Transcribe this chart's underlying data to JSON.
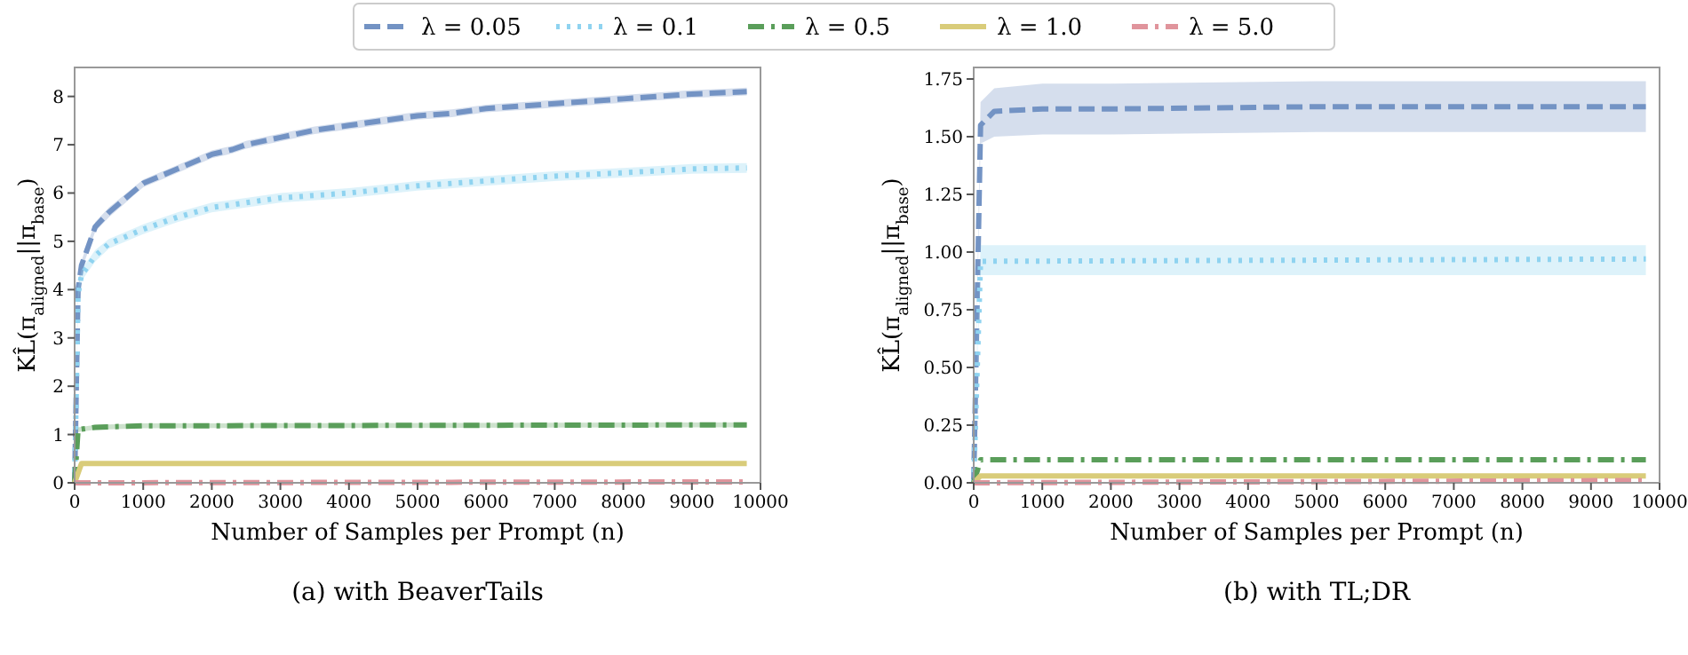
{
  "chart_data": [
    {
      "type": "line",
      "title": "(a) with BeaverTails",
      "xlabel": "Number of Samples per Prompt (n)",
      "ylabel": "KL̂(π$_{aligned}$||π$_{base}$)",
      "xlim": [
        0,
        10000
      ],
      "xticks": [
        0,
        1000,
        2000,
        3000,
        4000,
        5000,
        6000,
        7000,
        8000,
        9000,
        10000
      ],
      "ylim": [
        0,
        8.6
      ],
      "yticks": [
        0,
        1,
        2,
        3,
        4,
        5,
        6,
        7,
        8
      ],
      "legend": "top",
      "series": [
        {
          "name": "λ = 0.05",
          "color": "#7393c4",
          "line_style": "dashed",
          "x": [
            0,
            50,
            100,
            300,
            500,
            1000,
            1500,
            2000,
            2300,
            2500,
            3000,
            3500,
            4000,
            4500,
            5000,
            5500,
            6000,
            6500,
            7000,
            7500,
            8000,
            8500,
            9000,
            9500,
            9800
          ],
          "values": [
            0,
            4.0,
            4.5,
            5.3,
            5.6,
            6.2,
            6.5,
            6.8,
            6.9,
            7.0,
            7.15,
            7.3,
            7.4,
            7.5,
            7.6,
            7.65,
            7.75,
            7.8,
            7.85,
            7.9,
            7.95,
            8.0,
            8.05,
            8.08,
            8.1
          ],
          "lower": [
            0,
            3.9,
            4.4,
            5.2,
            5.5,
            6.12,
            6.42,
            6.72,
            6.82,
            6.92,
            7.07,
            7.22,
            7.32,
            7.42,
            7.52,
            7.57,
            7.67,
            7.72,
            7.77,
            7.82,
            7.87,
            7.92,
            7.97,
            8.0,
            8.02
          ],
          "upper": [
            0,
            4.1,
            4.6,
            5.4,
            5.7,
            6.28,
            6.58,
            6.88,
            6.98,
            7.08,
            7.23,
            7.38,
            7.48,
            7.58,
            7.68,
            7.73,
            7.83,
            7.88,
            7.93,
            7.98,
            8.03,
            8.08,
            8.13,
            8.16,
            8.18
          ]
        },
        {
          "name": "λ = 0.1",
          "color": "#8fd3f0",
          "line_style": "dotted",
          "x": [
            0,
            50,
            100,
            300,
            500,
            1000,
            1500,
            2000,
            2500,
            3000,
            4000,
            5000,
            6000,
            7000,
            8000,
            9000,
            9800
          ],
          "values": [
            0,
            3.9,
            4.3,
            4.7,
            4.95,
            5.25,
            5.5,
            5.7,
            5.8,
            5.9,
            6.0,
            6.15,
            6.25,
            6.35,
            6.42,
            6.5,
            6.52
          ],
          "lower": [
            0,
            3.75,
            4.18,
            4.58,
            4.85,
            5.15,
            5.4,
            5.6,
            5.7,
            5.8,
            5.9,
            6.05,
            6.15,
            6.25,
            6.32,
            6.4,
            6.42
          ],
          "upper": [
            0,
            4.05,
            4.42,
            4.82,
            5.05,
            5.35,
            5.6,
            5.8,
            5.9,
            6.0,
            6.1,
            6.25,
            6.35,
            6.45,
            6.52,
            6.6,
            6.62
          ]
        },
        {
          "name": "λ = 0.5",
          "color": "#5a9e5a",
          "line_style": "dashdot",
          "x": [
            0,
            50,
            300,
            1000,
            9800
          ],
          "values": [
            0,
            1.1,
            1.15,
            1.18,
            1.2
          ],
          "lower": [
            0,
            1.05,
            1.1,
            1.13,
            1.15
          ],
          "upper": [
            0,
            1.15,
            1.2,
            1.23,
            1.25
          ]
        },
        {
          "name": "λ = 1.0",
          "color": "#d9cc7a",
          "line_style": "solid",
          "x": [
            0,
            100,
            9800
          ],
          "values": [
            0,
            0.4,
            0.4
          ]
        },
        {
          "name": "λ = 5.0",
          "color": "#e0949c",
          "line_style": "dashdot",
          "x": [
            0,
            9800
          ],
          "values": [
            0,
            0.02
          ]
        }
      ]
    },
    {
      "type": "line",
      "title": "(b) with TL;DR",
      "xlabel": "Number of Samples per Prompt (n)",
      "ylabel": "KL̂(π$_{aligned}$||π$_{base}$)",
      "xlim": [
        0,
        10000
      ],
      "xticks": [
        0,
        1000,
        2000,
        3000,
        4000,
        5000,
        6000,
        7000,
        8000,
        9000,
        10000
      ],
      "ylim": [
        0,
        1.8
      ],
      "yticks": [
        {
          "value": 0,
          "label": "0.00"
        },
        {
          "value": 0.25,
          "label": "0.25"
        },
        {
          "value": 0.5,
          "label": "0.50"
        },
        {
          "value": 0.75,
          "label": "0.75"
        },
        {
          "value": 1,
          "label": "1.00"
        },
        {
          "value": 1.25,
          "label": "1.25"
        },
        {
          "value": 1.5,
          "label": "1.50"
        },
        {
          "value": 1.75,
          "label": "1.75"
        }
      ],
      "series": [
        {
          "color": "#7393c4",
          "line_style": "dashed",
          "x": [
            0,
            100,
            300,
            1000,
            2000,
            5000,
            9800
          ],
          "values": [
            0,
            1.55,
            1.61,
            1.62,
            1.62,
            1.63,
            1.63
          ],
          "lower": [
            0,
            1.47,
            1.5,
            1.51,
            1.51,
            1.52,
            1.52
          ],
          "upper": [
            0,
            1.65,
            1.71,
            1.73,
            1.73,
            1.74,
            1.74
          ]
        },
        {
          "color": "#8fd3f0",
          "line_style": "dotted",
          "x": [
            0,
            100,
            9800
          ],
          "values": [
            0,
            0.96,
            0.97
          ],
          "lower": [
            0,
            0.9,
            0.9
          ],
          "upper": [
            0,
            1.03,
            1.03
          ]
        },
        {
          "color": "#5a9e5a",
          "line_style": "dashdot",
          "x": [
            0,
            100,
            9800
          ],
          "values": [
            0,
            0.1,
            0.1
          ]
        },
        {
          "color": "#d9cc7a",
          "line_style": "solid",
          "x": [
            0,
            100,
            9800
          ],
          "values": [
            0,
            0.03,
            0.03
          ]
        },
        {
          "color": "#e0949c",
          "line_style": "dashdot",
          "x": [
            0,
            9800
          ],
          "values": [
            0,
            0.01
          ]
        }
      ]
    }
  ]
}
